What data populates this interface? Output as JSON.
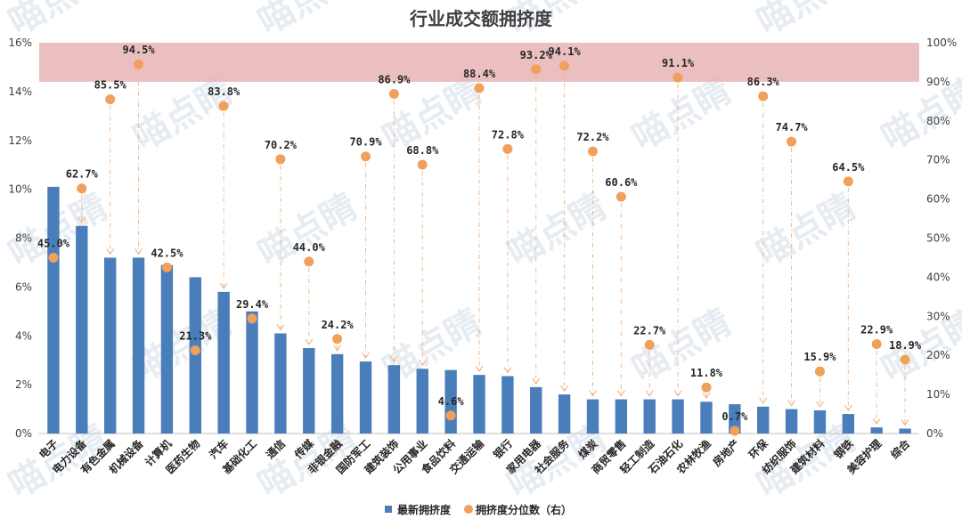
{
  "chart_data": {
    "type": "bar",
    "title": "行业成交额拥挤度",
    "categories": [
      "电子",
      "电力设备",
      "有色金属",
      "机械设备",
      "计算机",
      "医药生物",
      "汽车",
      "基础化工",
      "通信",
      "传媒",
      "非银金融",
      "国防军工",
      "建筑装饰",
      "公用事业",
      "食品饮料",
      "交通运输",
      "银行",
      "家用电器",
      "社会服务",
      "煤炭",
      "商贸零售",
      "轻工制造",
      "石油石化",
      "农林牧渔",
      "房地产",
      "环保",
      "纺织服饰",
      "建筑材料",
      "钢铁",
      "美容护理",
      "综合"
    ],
    "series": [
      {
        "name": "最新拥挤度",
        "axis": "left",
        "type": "bar",
        "color": "#4a7ebb",
        "values": [
          10.1,
          8.5,
          7.2,
          7.2,
          6.9,
          6.4,
          5.8,
          5.0,
          4.1,
          3.5,
          3.25,
          2.95,
          2.8,
          2.65,
          2.6,
          2.4,
          2.35,
          1.9,
          1.6,
          1.4,
          1.4,
          1.4,
          1.4,
          1.3,
          1.2,
          1.1,
          1.0,
          0.95,
          0.8,
          0.25,
          0.2
        ]
      },
      {
        "name": "拥挤度分位数（右）",
        "axis": "right",
        "type": "scatter",
        "color": "#f0a05a",
        "values": [
          45.0,
          62.7,
          85.5,
          94.5,
          42.5,
          21.3,
          83.8,
          29.4,
          70.2,
          44.0,
          24.2,
          70.9,
          86.9,
          68.8,
          4.6,
          88.4,
          72.8,
          93.2,
          94.1,
          72.2,
          60.6,
          22.7,
          91.1,
          11.8,
          0.7,
          86.3,
          74.7,
          15.9,
          64.5,
          22.9,
          18.9
        ],
        "labels": [
          "45.0%",
          "62.7%",
          "85.5%",
          "94.5%",
          "42.5%",
          "21.3%",
          "83.8%",
          "29.4%",
          "70.2%",
          "44.0%",
          "24.2%",
          "70.9%",
          "86.9%",
          "68.8%",
          "4.6%",
          "88.4%",
          "72.8%",
          "93.2%",
          "94.1%",
          "72.2%",
          "60.6%",
          "22.7%",
          "91.1%",
          "11.8%",
          "0.7%",
          "86.3%",
          "74.7%",
          "15.9%",
          "64.5%",
          "22.9%",
          "18.9%"
        ]
      }
    ],
    "ylim_left": [
      0,
      16
    ],
    "yticks_left": [
      "0%",
      "2%",
      "4%",
      "6%",
      "8%",
      "10%",
      "12%",
      "14%",
      "16%"
    ],
    "ylim_right": [
      0,
      100
    ],
    "yticks_right": [
      "0%",
      "10%",
      "20%",
      "30%",
      "40%",
      "50%",
      "60%",
      "70%",
      "80%",
      "90%",
      "100%"
    ],
    "highlight_band_right": [
      90,
      100
    ],
    "highlight_color": "#e8b4b4",
    "grid": false,
    "legend": "bottom-center",
    "watermark": "喵点睛"
  }
}
